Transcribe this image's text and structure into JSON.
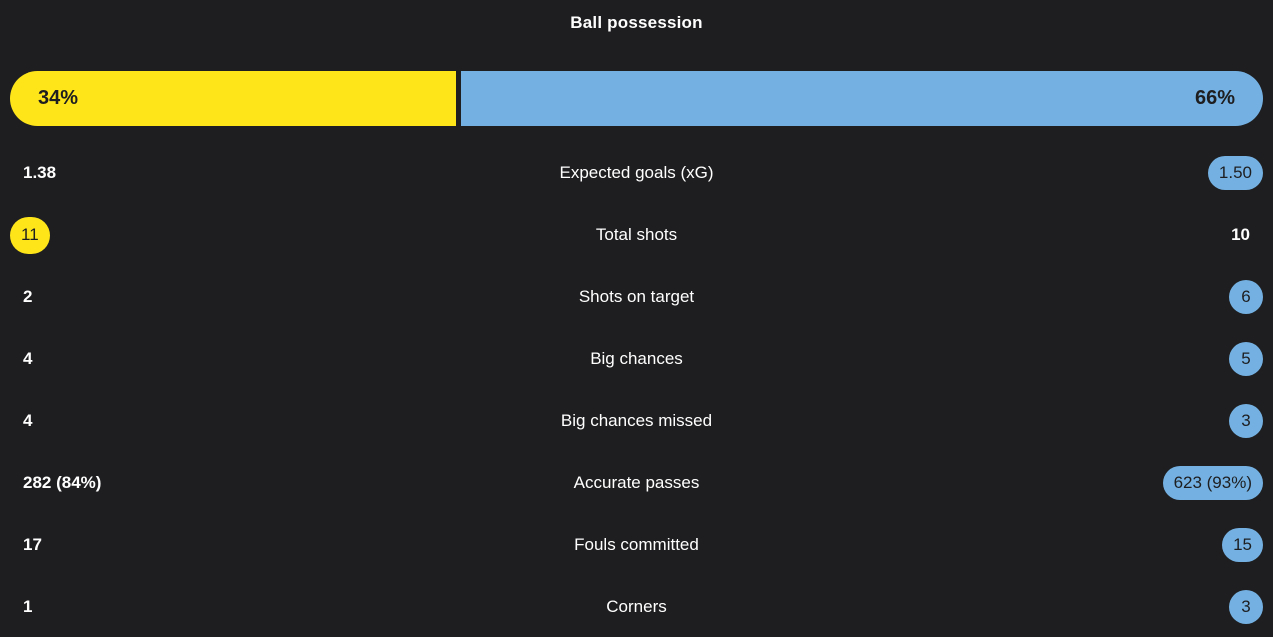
{
  "theme": {
    "background": "#1e1e20",
    "home_color": "#fde51a",
    "away_color": "#74b1e2",
    "pill_text_color": "#1e1e20",
    "text_color": "#ffffff"
  },
  "possession": {
    "title": "Ball possession",
    "home_label": "34%",
    "away_label": "66%",
    "home_value": 34,
    "away_value": 66
  },
  "stats": [
    {
      "label": "Expected goals (xG)",
      "home": "1.38",
      "away": "1.50",
      "home_style": "plain",
      "away_style": "pill-away"
    },
    {
      "label": "Total shots",
      "home": "11",
      "away": "10",
      "home_style": "pill-home",
      "away_style": "plain"
    },
    {
      "label": "Shots on target",
      "home": "2",
      "away": "6",
      "home_style": "plain",
      "away_style": "pill-away"
    },
    {
      "label": "Big chances",
      "home": "4",
      "away": "5",
      "home_style": "plain",
      "away_style": "pill-away"
    },
    {
      "label": "Big chances missed",
      "home": "4",
      "away": "3",
      "home_style": "plain",
      "away_style": "pill-away"
    },
    {
      "label": "Accurate passes",
      "home": "282 (84%)",
      "away": "623 (93%)",
      "home_style": "plain",
      "away_style": "pill-away"
    },
    {
      "label": "Fouls committed",
      "home": "17",
      "away": "15",
      "home_style": "plain",
      "away_style": "pill-away"
    },
    {
      "label": "Corners",
      "home": "1",
      "away": "3",
      "home_style": "plain",
      "away_style": "pill-away"
    }
  ]
}
